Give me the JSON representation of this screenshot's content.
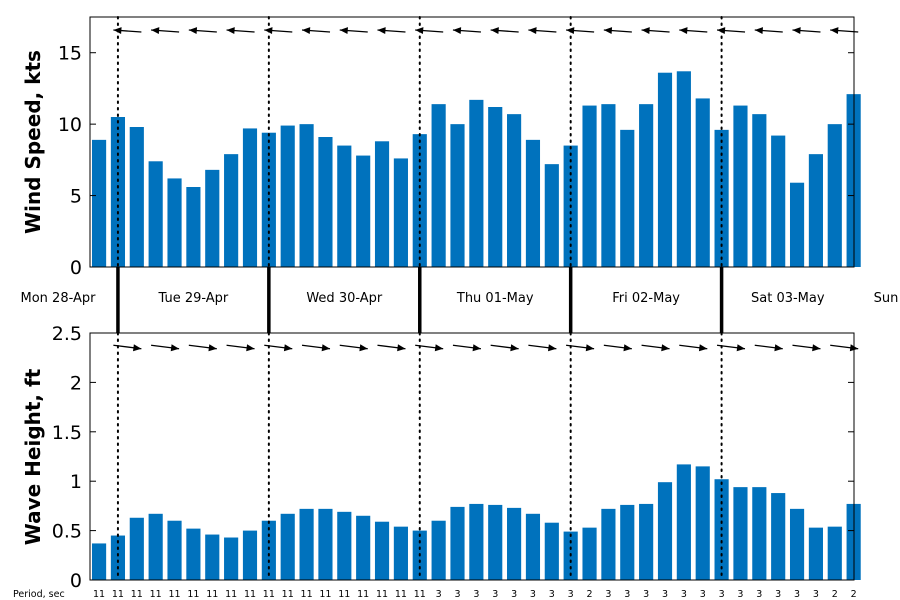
{
  "chart_data": [
    {
      "type": "bar",
      "ylabel": "Wind Speed, kts",
      "ylim": [
        0,
        17.5
      ],
      "yticks": [
        "0",
        "5",
        "10",
        "15"
      ],
      "bar_color": "#0072BD",
      "values": [
        8.9,
        10.5,
        9.8,
        7.4,
        6.2,
        5.6,
        6.8,
        7.9,
        9.7,
        9.4,
        9.9,
        10.0,
        9.1,
        8.5,
        7.8,
        8.8,
        7.6,
        9.3,
        11.4,
        10.0,
        11.7,
        11.2,
        10.7,
        8.9,
        7.2,
        8.5,
        11.3,
        11.4,
        9.6,
        11.4,
        13.6,
        13.7,
        11.8,
        9.6,
        11.3,
        10.7,
        9.2,
        5.9,
        7.9,
        10.0,
        12.1
      ],
      "direction_arrows": "arrows along top edge pointing left (easterly winds)"
    },
    {
      "type": "bar",
      "ylabel": "Wave Height, ft",
      "ylim": [
        0,
        2.5
      ],
      "yticks": [
        "0",
        "0.5",
        "1",
        "1.5",
        "2",
        "2.5"
      ],
      "bar_color": "#0072BD",
      "values": [
        0.37,
        0.45,
        0.63,
        0.67,
        0.6,
        0.52,
        0.46,
        0.43,
        0.5,
        0.6,
        0.67,
        0.72,
        0.72,
        0.69,
        0.65,
        0.59,
        0.54,
        0.5,
        0.6,
        0.74,
        0.77,
        0.76,
        0.73,
        0.67,
        0.58,
        0.49,
        0.53,
        0.72,
        0.76,
        0.77,
        0.99,
        1.17,
        1.15,
        1.02,
        0.94,
        0.94,
        0.88,
        0.72,
        0.53,
        0.54,
        0.77
      ],
      "direction_arrows": "arrows along top edge pointing right, slightly downward"
    }
  ],
  "days": [
    "Mon 28-Apr",
    "Tue 29-Apr",
    "Wed 30-Apr",
    "Thu 01-May",
    "Fri 02-May",
    "Sat 03-May",
    "Sun"
  ],
  "period_label": "Period, sec",
  "periods": [
    "11",
    "11",
    "11",
    "11",
    "11",
    "11",
    "11",
    "11",
    "11",
    "11",
    "11",
    "11",
    "11",
    "11",
    "11",
    "11",
    "11",
    "11",
    "3",
    "3",
    "3",
    "3",
    "3",
    "3",
    "3",
    "3",
    "2",
    "3",
    "3",
    "3",
    "3",
    "3",
    "3",
    "3",
    "3",
    "3",
    "3",
    "3",
    "3",
    "2",
    "2"
  ]
}
